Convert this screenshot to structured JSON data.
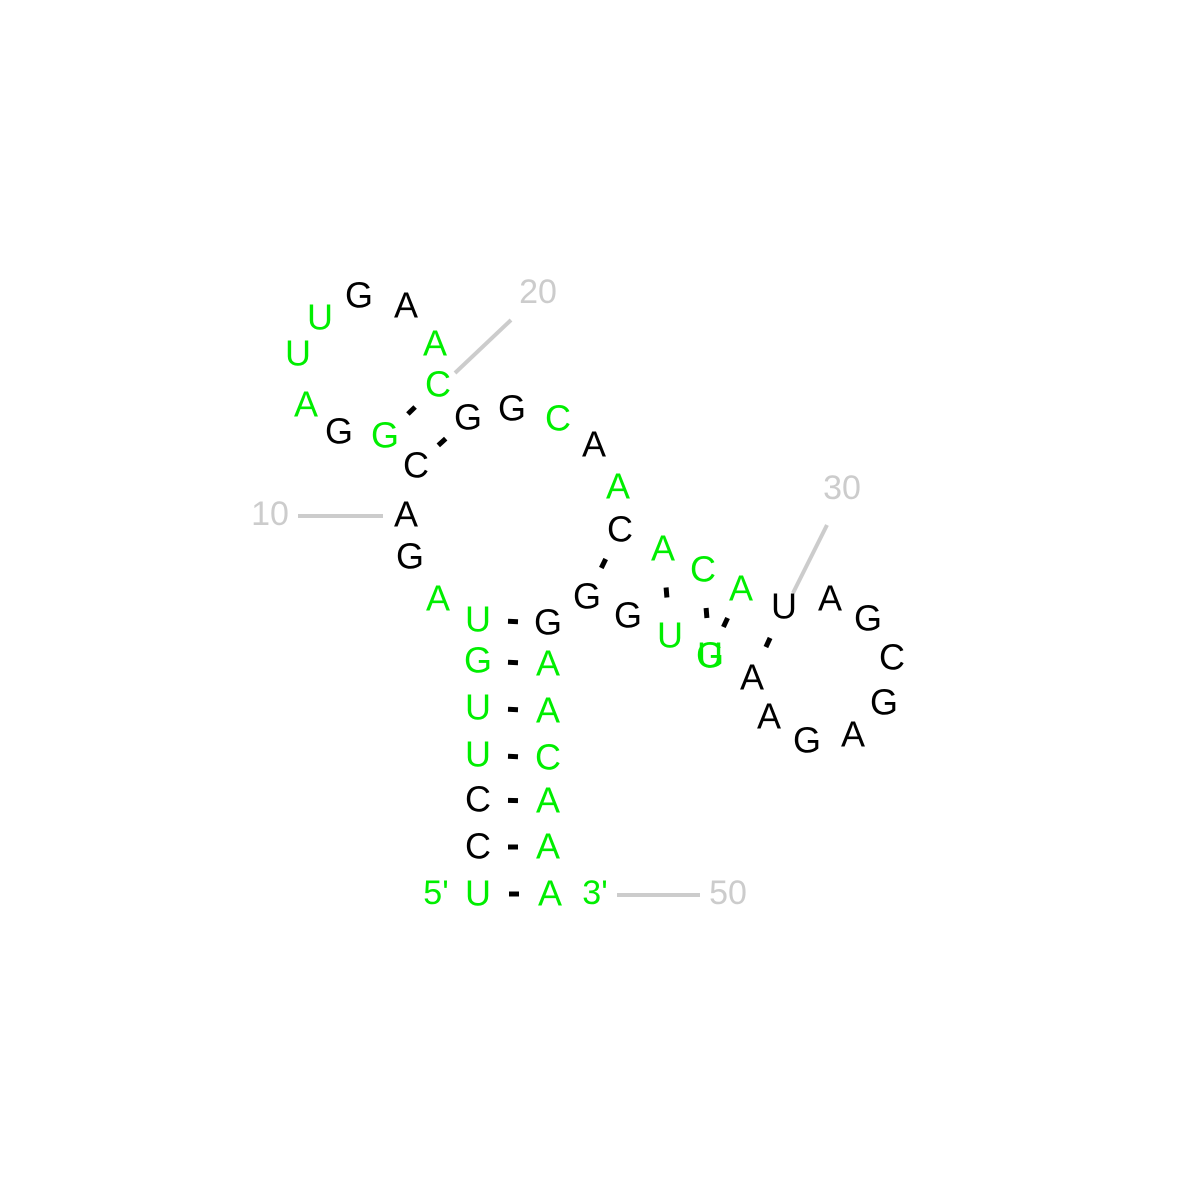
{
  "colors": {
    "highlight": "#00ee00",
    "base": "#000000",
    "numbering": "#cccccc"
  },
  "ends": {
    "five_prime": "5'",
    "three_prime": "3'"
  },
  "nucleotides": [
    {
      "base": "U",
      "hl": true
    },
    {
      "base": "C",
      "hl": false
    },
    {
      "base": "C",
      "hl": false
    },
    {
      "base": "U",
      "hl": true
    },
    {
      "base": "U",
      "hl": true
    },
    {
      "base": "G",
      "hl": true
    },
    {
      "base": "U",
      "hl": true
    },
    {
      "base": "A",
      "hl": true
    },
    {
      "base": "G",
      "hl": false
    },
    {
      "base": "A",
      "hl": false
    },
    {
      "base": "C",
      "hl": false
    },
    {
      "base": "G",
      "hl": true
    },
    {
      "base": "G",
      "hl": false
    },
    {
      "base": "A",
      "hl": true
    },
    {
      "base": "U",
      "hl": true
    },
    {
      "base": "U",
      "hl": true
    },
    {
      "base": "G",
      "hl": false
    },
    {
      "base": "A",
      "hl": false
    },
    {
      "base": "A",
      "hl": true
    },
    {
      "base": "C",
      "hl": true
    },
    {
      "base": "G",
      "hl": false
    },
    {
      "base": "G",
      "hl": false
    },
    {
      "base": "C",
      "hl": true
    },
    {
      "base": "A",
      "hl": false
    },
    {
      "base": "A",
      "hl": true
    },
    {
      "base": "C",
      "hl": false
    },
    {
      "base": "A",
      "hl": true
    },
    {
      "base": "C",
      "hl": true
    },
    {
      "base": "A",
      "hl": true
    },
    {
      "base": "U",
      "hl": false
    },
    {
      "base": "A",
      "hl": false
    },
    {
      "base": "G",
      "hl": false
    },
    {
      "base": "C",
      "hl": false
    },
    {
      "base": "G",
      "hl": false
    },
    {
      "base": "A",
      "hl": false
    },
    {
      "base": "G",
      "hl": false
    },
    {
      "base": "A",
      "hl": false
    },
    {
      "base": "A",
      "hl": false
    },
    {
      "base": "U",
      "hl": true
    },
    {
      "base": "G",
      "hl": true
    },
    {
      "base": "U",
      "hl": true
    },
    {
      "base": "G",
      "hl": false
    },
    {
      "base": "G",
      "hl": false
    },
    {
      "base": "G",
      "hl": false
    },
    {
      "base": "A",
      "hl": true
    },
    {
      "base": "A",
      "hl": true
    },
    {
      "base": "C",
      "hl": true
    },
    {
      "base": "A",
      "hl": true
    },
    {
      "base": "A",
      "hl": true
    },
    {
      "base": "A",
      "hl": true
    }
  ],
  "pairs": [
    [
      1,
      50
    ],
    [
      2,
      49
    ],
    [
      3,
      48
    ],
    [
      4,
      47
    ],
    [
      5,
      46
    ],
    [
      6,
      45
    ],
    [
      7,
      44
    ],
    [
      11,
      21
    ],
    [
      12,
      20
    ],
    [
      26,
      43
    ],
    [
      27,
      41
    ],
    [
      28,
      40
    ],
    [
      29,
      39
    ],
    [
      30,
      38
    ]
  ],
  "numbering": [
    {
      "index": 10,
      "label": "10"
    },
    {
      "index": 20,
      "label": "20"
    },
    {
      "index": 30,
      "label": "30"
    },
    {
      "index": 50,
      "label": "50"
    }
  ]
}
